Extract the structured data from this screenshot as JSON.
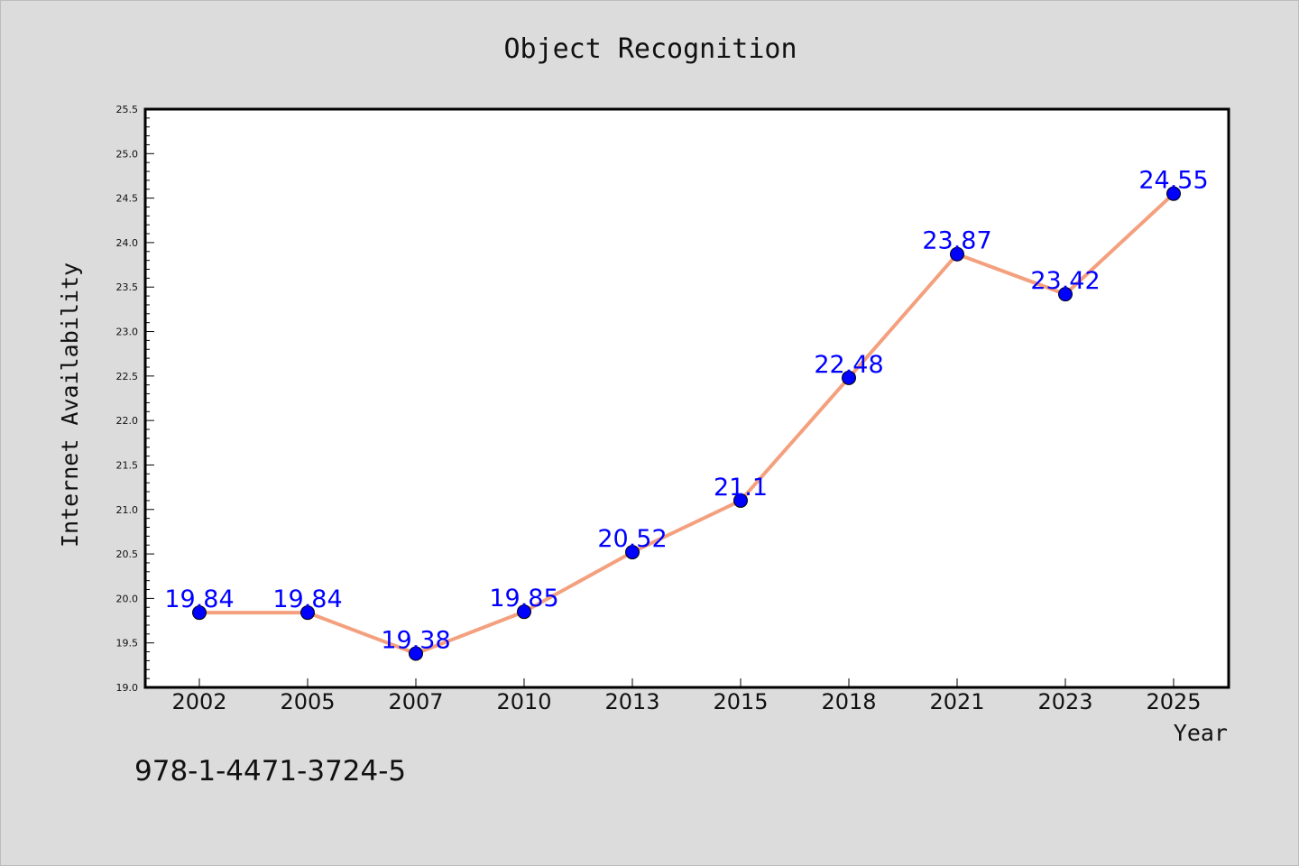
{
  "chart_data": {
    "type": "line",
    "title": "Object Recognition",
    "xlabel": "Year",
    "ylabel": "Internet Availability",
    "x": [
      "2002",
      "2005",
      "2007",
      "2010",
      "2013",
      "2015",
      "2018",
      "2021",
      "2023",
      "2025"
    ],
    "series": [
      {
        "values": [
          19.84,
          19.84,
          19.38,
          19.85,
          20.52,
          21.1,
          22.48,
          23.87,
          23.42,
          24.55
        ],
        "labels": [
          "19.84",
          "19.84",
          "19.38",
          "19.85",
          "20.52",
          "21.1",
          "22.48",
          "23.87",
          "23.42",
          "24.55"
        ]
      }
    ],
    "ylim": [
      19.0,
      25.5
    ],
    "y_ticks": [
      "19.0",
      "19.5",
      "20.0",
      "20.5",
      "21.0",
      "21.5",
      "22.0",
      "22.5",
      "23.0",
      "23.5",
      "24.0",
      "24.5",
      "25.0",
      "25.5"
    ],
    "grid": false,
    "legend": "none",
    "colors": {
      "line": "#f4a07e",
      "marker": "#0000ff",
      "marker_edge": "#000000",
      "data_label": "#0000ff",
      "background": "#dcdcdc",
      "plot_background": "#ffffff"
    }
  },
  "annotation": {
    "text": "978-1-4471-3724-5"
  }
}
